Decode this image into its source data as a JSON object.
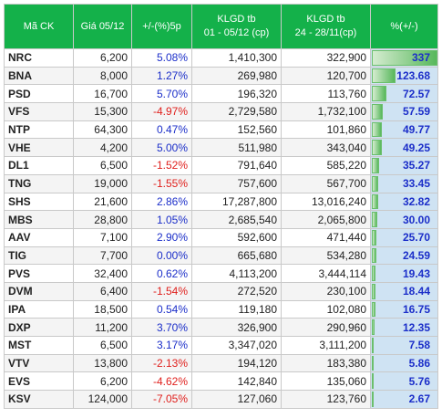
{
  "header": {
    "col_code": "Mã CK",
    "col_price_l1": "Giá 05/12",
    "col_change_l1": "+/-(%)5p",
    "col_vol1_l1": "KLGD tb",
    "col_vol1_l2": "01 - 05/12 (cp)",
    "col_vol2_l1": "KLGD tb",
    "col_vol2_l2": "24 - 28/11(cp)",
    "col_pct_l1": "%(+/-)"
  },
  "colors": {
    "header_bg": "#14b14a",
    "positive": "#1b2ec9",
    "negative": "#e0201d",
    "bar_green": "#58b85c",
    "pct_cell_bg": "#cfe3f3"
  },
  "rows": [
    {
      "code": "NRC",
      "price": "6,200",
      "change": "5.08%",
      "change_sign": "pos",
      "vol_now": "1,410,300",
      "vol_prev": "322,900",
      "pct": "337",
      "pct_value": 337
    },
    {
      "code": "BNA",
      "price": "8,000",
      "change": "1.27%",
      "change_sign": "pos",
      "vol_now": "269,980",
      "vol_prev": "120,700",
      "pct": "123.68",
      "pct_value": 123.68
    },
    {
      "code": "PSD",
      "price": "16,700",
      "change": "5.70%",
      "change_sign": "pos",
      "vol_now": "196,320",
      "vol_prev": "113,760",
      "pct": "72.57",
      "pct_value": 72.57
    },
    {
      "code": "VFS",
      "price": "15,300",
      "change": "-4.97%",
      "change_sign": "neg",
      "vol_now": "2,729,580",
      "vol_prev": "1,732,100",
      "pct": "57.59",
      "pct_value": 57.59
    },
    {
      "code": "NTP",
      "price": "64,300",
      "change": "0.47%",
      "change_sign": "pos",
      "vol_now": "152,560",
      "vol_prev": "101,860",
      "pct": "49.77",
      "pct_value": 49.77
    },
    {
      "code": "VHE",
      "price": "4,200",
      "change": "5.00%",
      "change_sign": "pos",
      "vol_now": "511,980",
      "vol_prev": "343,040",
      "pct": "49.25",
      "pct_value": 49.25
    },
    {
      "code": "DL1",
      "price": "6,500",
      "change": "-1.52%",
      "change_sign": "neg",
      "vol_now": "791,640",
      "vol_prev": "585,220",
      "pct": "35.27",
      "pct_value": 35.27
    },
    {
      "code": "TNG",
      "price": "19,000",
      "change": "-1.55%",
      "change_sign": "neg",
      "vol_now": "757,600",
      "vol_prev": "567,700",
      "pct": "33.45",
      "pct_value": 33.45
    },
    {
      "code": "SHS",
      "price": "21,600",
      "change": "2.86%",
      "change_sign": "pos",
      "vol_now": "17,287,800",
      "vol_prev": "13,016,240",
      "pct": "32.82",
      "pct_value": 32.82
    },
    {
      "code": "MBS",
      "price": "28,800",
      "change": "1.05%",
      "change_sign": "pos",
      "vol_now": "2,685,540",
      "vol_prev": "2,065,800",
      "pct": "30.00",
      "pct_value": 30.0
    },
    {
      "code": "AAV",
      "price": "7,100",
      "change": "2.90%",
      "change_sign": "pos",
      "vol_now": "592,600",
      "vol_prev": "471,440",
      "pct": "25.70",
      "pct_value": 25.7
    },
    {
      "code": "TIG",
      "price": "7,700",
      "change": "0.00%",
      "change_sign": "pos",
      "vol_now": "665,680",
      "vol_prev": "534,280",
      "pct": "24.59",
      "pct_value": 24.59
    },
    {
      "code": "PVS",
      "price": "32,400",
      "change": "0.62%",
      "change_sign": "pos",
      "vol_now": "4,113,200",
      "vol_prev": "3,444,114",
      "pct": "19.43",
      "pct_value": 19.43
    },
    {
      "code": "DVM",
      "price": "6,400",
      "change": "-1.54%",
      "change_sign": "neg",
      "vol_now": "272,520",
      "vol_prev": "230,100",
      "pct": "18.44",
      "pct_value": 18.44
    },
    {
      "code": "IPA",
      "price": "18,500",
      "change": "0.54%",
      "change_sign": "pos",
      "vol_now": "119,180",
      "vol_prev": "102,080",
      "pct": "16.75",
      "pct_value": 16.75
    },
    {
      "code": "DXP",
      "price": "11,200",
      "change": "3.70%",
      "change_sign": "pos",
      "vol_now": "326,900",
      "vol_prev": "290,960",
      "pct": "12.35",
      "pct_value": 12.35
    },
    {
      "code": "MST",
      "price": "6,500",
      "change": "3.17%",
      "change_sign": "pos",
      "vol_now": "3,347,020",
      "vol_prev": "3,111,200",
      "pct": "7.58",
      "pct_value": 7.58
    },
    {
      "code": "VTV",
      "price": "13,800",
      "change": "-2.13%",
      "change_sign": "neg",
      "vol_now": "194,120",
      "vol_prev": "183,380",
      "pct": "5.86",
      "pct_value": 5.86
    },
    {
      "code": "EVS",
      "price": "6,200",
      "change": "-4.62%",
      "change_sign": "neg",
      "vol_now": "142,840",
      "vol_prev": "135,060",
      "pct": "5.76",
      "pct_value": 5.76
    },
    {
      "code": "KSV",
      "price": "124,000",
      "change": "-7.05%",
      "change_sign": "neg",
      "vol_now": "127,060",
      "vol_prev": "123,760",
      "pct": "2.67",
      "pct_value": 2.67
    }
  ]
}
